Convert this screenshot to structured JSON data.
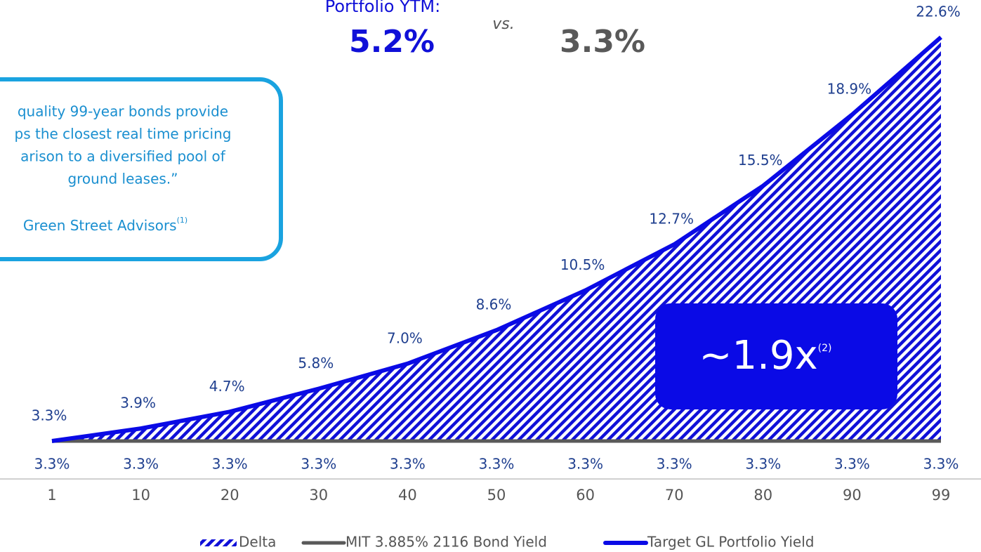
{
  "chart_data": {
    "type": "line",
    "header": {
      "label": "Portfolio YTM:",
      "target": "5.2%",
      "vs": "vs.",
      "bond": "3.3%"
    },
    "callout": {
      "lines": [
        "quality 99-year bonds provide",
        "ps the closest real time pricing",
        "arison to a diversified pool of",
        "ground leases.”"
      ],
      "source": "Green Street Advisors",
      "source_note": "(1)"
    },
    "multiple": {
      "text": "~1.9x",
      "note": "(2)"
    },
    "categories": [
      1,
      10,
      20,
      30,
      40,
      50,
      60,
      70,
      80,
      90,
      99
    ],
    "ylim": [
      3.3,
      22.6
    ],
    "area": {
      "name": "Delta",
      "color": "#1010d8"
    },
    "series": [
      {
        "name": "MIT 3.885% 2116 Bond Yield",
        "color": "#595959",
        "values": [
          3.3,
          3.3,
          3.3,
          3.3,
          3.3,
          3.3,
          3.3,
          3.3,
          3.3,
          3.3,
          3.3
        ],
        "value_labels": [
          "3.3%",
          "3.3%",
          "3.3%",
          "3.3%",
          "3.3%",
          "3.3%",
          "3.3%",
          "3.3%",
          "3.3%",
          "3.3%",
          "3.3%"
        ]
      },
      {
        "name": "Target GL Portfolio Yield",
        "color": "#0a0ae6",
        "values": [
          3.3,
          3.9,
          4.7,
          5.8,
          7.0,
          8.6,
          10.5,
          12.7,
          15.5,
          18.9,
          22.6
        ],
        "value_labels": [
          "3.3%",
          "3.9%",
          "4.7%",
          "5.8%",
          "7.0%",
          "8.6%",
          "10.5%",
          "12.7%",
          "15.5%",
          "18.9%",
          "22.6%"
        ]
      }
    ],
    "legend": "bottom"
  }
}
